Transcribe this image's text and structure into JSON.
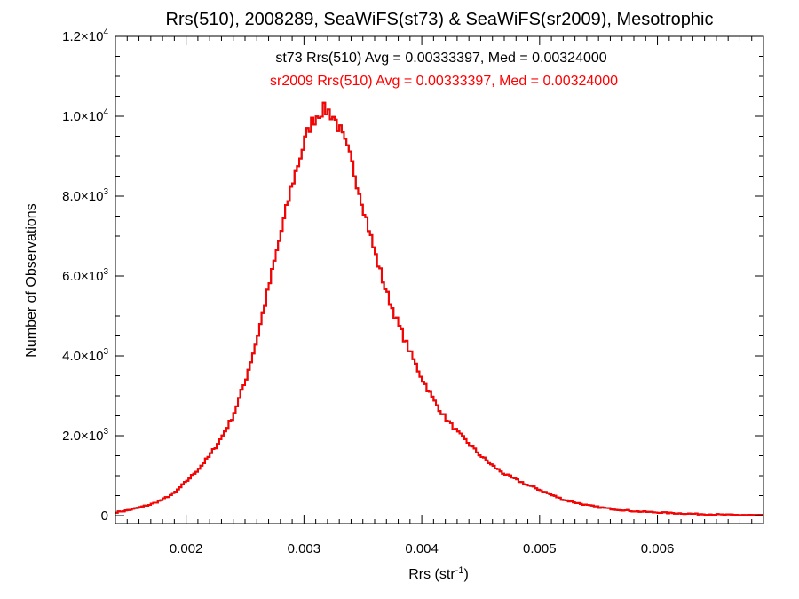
{
  "chart_data": {
    "type": "step-histogram",
    "title": "Rrs(510), 2008289, SeaWiFS(st73) & SeaWiFS(sr2009), Mesotrophic",
    "xlabel_main": "Rrs (str",
    "xlabel_sup": "-1",
    "xlabel_end": ")",
    "ylabel": "Number of Observations",
    "xlim": [
      0.0014,
      0.0069
    ],
    "ylim": [
      -200,
      12000
    ],
    "x_ticks": [
      {
        "value": 0.002,
        "label": "0.002"
      },
      {
        "value": 0.003,
        "label": "0.003"
      },
      {
        "value": 0.004,
        "label": "0.004"
      },
      {
        "value": 0.005,
        "label": "0.005"
      },
      {
        "value": 0.006,
        "label": "0.006"
      }
    ],
    "y_ticks": [
      {
        "value": 0,
        "label": "0",
        "sup": ""
      },
      {
        "value": 2000,
        "label": "2.0×10",
        "sup": "3"
      },
      {
        "value": 4000,
        "label": "4.0×10",
        "sup": "3"
      },
      {
        "value": 6000,
        "label": "6.0×10",
        "sup": "3"
      },
      {
        "value": 8000,
        "label": "8.0×10",
        "sup": "3"
      },
      {
        "value": 10000,
        "label": "1.0×10",
        "sup": "4"
      },
      {
        "value": 12000,
        "label": "1.2×10",
        "sup": "4"
      }
    ],
    "annotations": [
      {
        "text": "st73 Rrs(510) Avg = 0.00333397, Med = 0.00324000",
        "color": "#000000"
      },
      {
        "text": "sr2009 Rrs(510) Avg = 0.00333397, Med = 0.00324000",
        "color": "#ff0000"
      }
    ],
    "series": [
      {
        "color": "#000000"
      },
      {
        "color": "#ff0000"
      }
    ],
    "bin_width": 2e-05,
    "x": [
      0.0014,
      0.0015,
      0.0016,
      0.0017,
      0.0018,
      0.0019,
      0.002,
      0.0021,
      0.0022,
      0.0023,
      0.0024,
      0.0025,
      0.0026,
      0.0027,
      0.0028,
      0.0029,
      0.003,
      0.00305,
      0.0031,
      0.00315,
      0.0032,
      0.00325,
      0.0033,
      0.0034,
      0.0035,
      0.0036,
      0.0037,
      0.0038,
      0.0039,
      0.004,
      0.0041,
      0.0042,
      0.0043,
      0.0044,
      0.0045,
      0.0046,
      0.0047,
      0.0048,
      0.0049,
      0.005,
      0.0051,
      0.0052,
      0.0053,
      0.0054,
      0.0055,
      0.0056,
      0.0057,
      0.0058,
      0.006,
      0.0062,
      0.0064,
      0.0066,
      0.0069
    ],
    "y": [
      80,
      130,
      200,
      280,
      400,
      560,
      850,
      1150,
      1500,
      1950,
      2500,
      3350,
      4400,
      5700,
      7000,
      8300,
      9300,
      9750,
      10000,
      10150,
      10150,
      10000,
      9700,
      8900,
      7800,
      6600,
      5600,
      4800,
      4100,
      3450,
      2900,
      2450,
      2100,
      1800,
      1500,
      1250,
      1050,
      900,
      760,
      650,
      520,
      400,
      330,
      260,
      210,
      170,
      140,
      110,
      80,
      55,
      35,
      20,
      10
    ]
  }
}
